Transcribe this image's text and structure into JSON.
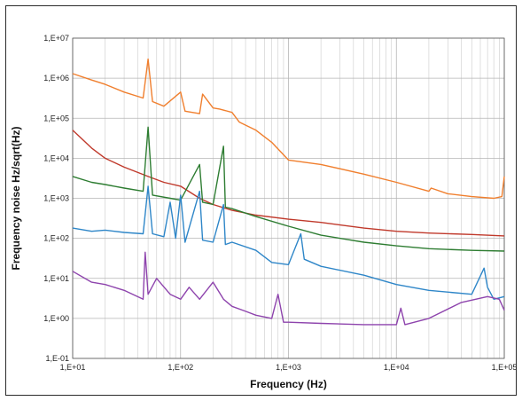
{
  "chart_data": {
    "type": "line",
    "title": "",
    "xlabel": "Frequency (Hz)",
    "ylabel": "Frequency noise Hz/sqrt(Hz)",
    "xscale": "log",
    "yscale": "log",
    "xlim": [
      10,
      100000
    ],
    "ylim": [
      0.1,
      10000000
    ],
    "grid": "on (major and minor x gridlines, major y gridlines)",
    "legend": "none",
    "x_ticks": [
      10,
      100,
      1000,
      10000,
      100000
    ],
    "x_tick_labels": [
      "1,E+01",
      "1,E+02",
      "1,E+03",
      "1,E+04",
      "1,E+05"
    ],
    "y_ticks": [
      0.1,
      1,
      10,
      100,
      1000,
      10000,
      100000,
      1000000,
      10000000
    ],
    "y_tick_labels": [
      "1,E-01",
      "1,E+00",
      "1,E+01",
      "1,E+02",
      "1,E+03",
      "1,E+04",
      "1,E+05",
      "1,E+06",
      "1,E+07"
    ],
    "series": [
      {
        "color": "#f07f2e",
        "points": [
          [
            10,
            1300000
          ],
          [
            15,
            900000
          ],
          [
            20,
            700000
          ],
          [
            30,
            450000
          ],
          [
            45,
            320000
          ],
          [
            50,
            3000000
          ],
          [
            55,
            260000
          ],
          [
            70,
            200000
          ],
          [
            100,
            450000
          ],
          [
            110,
            150000
          ],
          [
            150,
            130000
          ],
          [
            160,
            400000
          ],
          [
            200,
            180000
          ],
          [
            230,
            170000
          ],
          [
            300,
            140000
          ],
          [
            350,
            80000
          ],
          [
            500,
            50000
          ],
          [
            700,
            25000
          ],
          [
            1000,
            9000
          ],
          [
            2000,
            7000
          ],
          [
            5000,
            4000
          ],
          [
            10000,
            2500
          ],
          [
            20000,
            1500
          ],
          [
            21000,
            1800
          ],
          [
            30000,
            1300
          ],
          [
            50000,
            1100
          ],
          [
            80000,
            1000
          ],
          [
            95000,
            1100
          ],
          [
            100000,
            3500
          ]
        ]
      },
      {
        "color": "#c0392b",
        "points": [
          [
            10,
            50000
          ],
          [
            15,
            18000
          ],
          [
            20,
            10000
          ],
          [
            30,
            6000
          ],
          [
            50,
            3500
          ],
          [
            70,
            2500
          ],
          [
            100,
            2000
          ],
          [
            150,
            1000
          ],
          [
            200,
            700
          ],
          [
            300,
            500
          ],
          [
            500,
            380
          ],
          [
            1000,
            300
          ],
          [
            2000,
            250
          ],
          [
            5000,
            180
          ],
          [
            10000,
            150
          ],
          [
            20000,
            135
          ],
          [
            50000,
            125
          ],
          [
            100000,
            115
          ]
        ]
      },
      {
        "color": "#2e7d32",
        "points": [
          [
            10,
            3500
          ],
          [
            15,
            2500
          ],
          [
            20,
            2200
          ],
          [
            30,
            1800
          ],
          [
            45,
            1500
          ],
          [
            50,
            60000
          ],
          [
            55,
            1200
          ],
          [
            80,
            1000
          ],
          [
            100,
            900
          ],
          [
            150,
            7000
          ],
          [
            160,
            800
          ],
          [
            200,
            700
          ],
          [
            250,
            20000
          ],
          [
            260,
            600
          ],
          [
            300,
            550
          ],
          [
            500,
            350
          ],
          [
            1000,
            200
          ],
          [
            2000,
            120
          ],
          [
            5000,
            80
          ],
          [
            10000,
            65
          ],
          [
            20000,
            55
          ],
          [
            50000,
            50
          ],
          [
            100000,
            48
          ]
        ]
      },
      {
        "color": "#2e86c8",
        "points": [
          [
            10,
            180
          ],
          [
            15,
            150
          ],
          [
            20,
            160
          ],
          [
            30,
            140
          ],
          [
            45,
            130
          ],
          [
            50,
            2000
          ],
          [
            55,
            130
          ],
          [
            70,
            110
          ],
          [
            80,
            800
          ],
          [
            90,
            100
          ],
          [
            100,
            1200
          ],
          [
            110,
            80
          ],
          [
            150,
            1500
          ],
          [
            160,
            90
          ],
          [
            200,
            80
          ],
          [
            250,
            700
          ],
          [
            260,
            70
          ],
          [
            300,
            80
          ],
          [
            500,
            50
          ],
          [
            700,
            25
          ],
          [
            1000,
            22
          ],
          [
            1300,
            130
          ],
          [
            1400,
            30
          ],
          [
            2000,
            20
          ],
          [
            5000,
            12
          ],
          [
            10000,
            7
          ],
          [
            20000,
            5
          ],
          [
            50000,
            4
          ],
          [
            65000,
            18
          ],
          [
            70000,
            6
          ],
          [
            80000,
            3
          ],
          [
            100000,
            3.5
          ]
        ]
      },
      {
        "color": "#8e44ad",
        "points": [
          [
            10,
            15
          ],
          [
            15,
            8
          ],
          [
            20,
            7
          ],
          [
            30,
            5
          ],
          [
            45,
            3
          ],
          [
            47,
            45
          ],
          [
            50,
            4
          ],
          [
            60,
            10
          ],
          [
            80,
            4
          ],
          [
            100,
            3
          ],
          [
            120,
            6
          ],
          [
            150,
            3
          ],
          [
            200,
            8
          ],
          [
            250,
            3
          ],
          [
            300,
            2
          ],
          [
            400,
            1.5
          ],
          [
            500,
            1.2
          ],
          [
            700,
            1
          ],
          [
            800,
            4
          ],
          [
            900,
            0.8
          ],
          [
            1000,
            0.8
          ],
          [
            2000,
            0.75
          ],
          [
            5000,
            0.7
          ],
          [
            10000,
            0.7
          ],
          [
            11000,
            1.8
          ],
          [
            12000,
            0.7
          ],
          [
            20000,
            1
          ],
          [
            40000,
            2.5
          ],
          [
            70000,
            3.5
          ],
          [
            90000,
            3
          ],
          [
            100000,
            1.6
          ]
        ]
      }
    ]
  }
}
